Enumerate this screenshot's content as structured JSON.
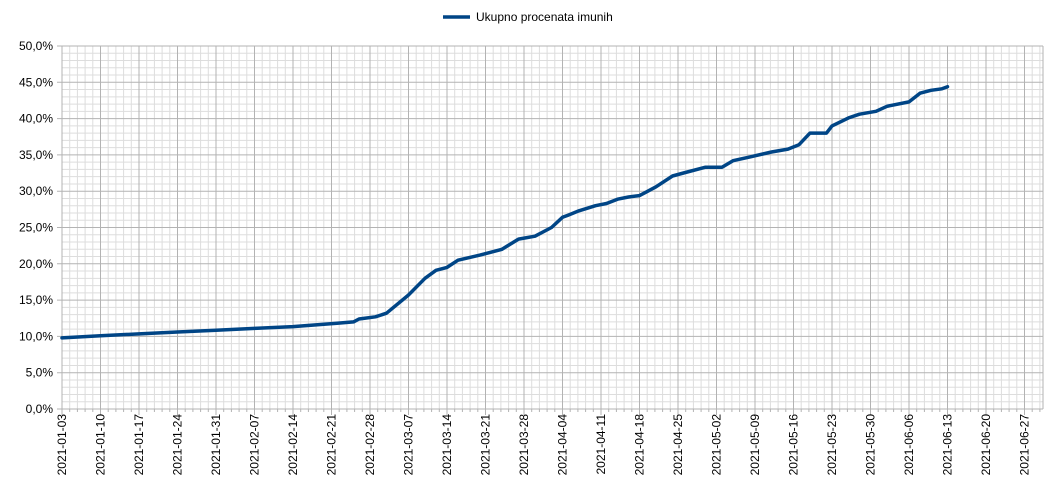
{
  "chart_data": {
    "type": "line",
    "title": "",
    "xlabel": "",
    "ylabel": "",
    "legend": {
      "position": "top-center",
      "entries": [
        "Ukupno procenata imunih"
      ]
    },
    "grid": true,
    "ylim": [
      0,
      50
    ],
    "xlim": [
      "2021-01-03",
      "2021-06-30"
    ],
    "y_ticks": [
      "0,0%",
      "5,0%",
      "10,0%",
      "15,0%",
      "20,0%",
      "25,0%",
      "30,0%",
      "35,0%",
      "40,0%",
      "45,0%",
      "50,0%"
    ],
    "x_ticks": [
      "2021-01-03",
      "2021-01-10",
      "2021-01-17",
      "2021-01-24",
      "2021-01-31",
      "2021-02-07",
      "2021-02-14",
      "2021-02-21",
      "2021-02-28",
      "2021-03-07",
      "2021-03-14",
      "2021-03-21",
      "2021-03-28",
      "2021-04-04",
      "2021-04-11",
      "2021-04-18",
      "2021-04-25",
      "2021-05-02",
      "2021-05-09",
      "2021-05-16",
      "2021-05-23",
      "2021-05-30",
      "2021-06-06",
      "2021-06-13",
      "2021-06-20",
      "2021-06-27"
    ],
    "series": [
      {
        "name": "Ukupno procenata imunih",
        "color": "#004586",
        "x": [
          "2021-01-03",
          "2021-01-10",
          "2021-01-17",
          "2021-01-24",
          "2021-01-31",
          "2021-02-07",
          "2021-02-14",
          "2021-02-22",
          "2021-02-25",
          "2021-02-26",
          "2021-03-01",
          "2021-03-03",
          "2021-03-07",
          "2021-03-10",
          "2021-03-12",
          "2021-03-14",
          "2021-03-16",
          "2021-03-20",
          "2021-03-24",
          "2021-03-27",
          "2021-03-30",
          "2021-04-02",
          "2021-04-04",
          "2021-04-05",
          "2021-04-07",
          "2021-04-10",
          "2021-04-12",
          "2021-04-14",
          "2021-04-16",
          "2021-04-18",
          "2021-04-19",
          "2021-04-21",
          "2021-04-24",
          "2021-04-26",
          "2021-04-30",
          "2021-05-03",
          "2021-05-05",
          "2021-05-08",
          "2021-05-12",
          "2021-05-15",
          "2021-05-17",
          "2021-05-19",
          "2021-05-22",
          "2021-05-23",
          "2021-05-26",
          "2021-05-28",
          "2021-05-31",
          "2021-06-02",
          "2021-06-06",
          "2021-06-08",
          "2021-06-10",
          "2021-06-12",
          "2021-06-13"
        ],
        "values": [
          9.8,
          10.1,
          10.35,
          10.6,
          10.85,
          11.1,
          11.35,
          11.8,
          12.0,
          12.4,
          12.7,
          13.2,
          15.7,
          18.0,
          19.1,
          19.5,
          20.5,
          21.2,
          22.0,
          23.4,
          23.8,
          25.0,
          26.4,
          26.7,
          27.3,
          28.0,
          28.3,
          28.9,
          29.2,
          29.4,
          29.8,
          30.6,
          32.1,
          32.5,
          33.3,
          33.3,
          34.2,
          34.7,
          35.4,
          35.8,
          36.4,
          38.0,
          38.0,
          39.0,
          40.1,
          40.6,
          41.0,
          41.7,
          42.3,
          43.5,
          43.9,
          44.1,
          44.4
        ]
      }
    ]
  }
}
